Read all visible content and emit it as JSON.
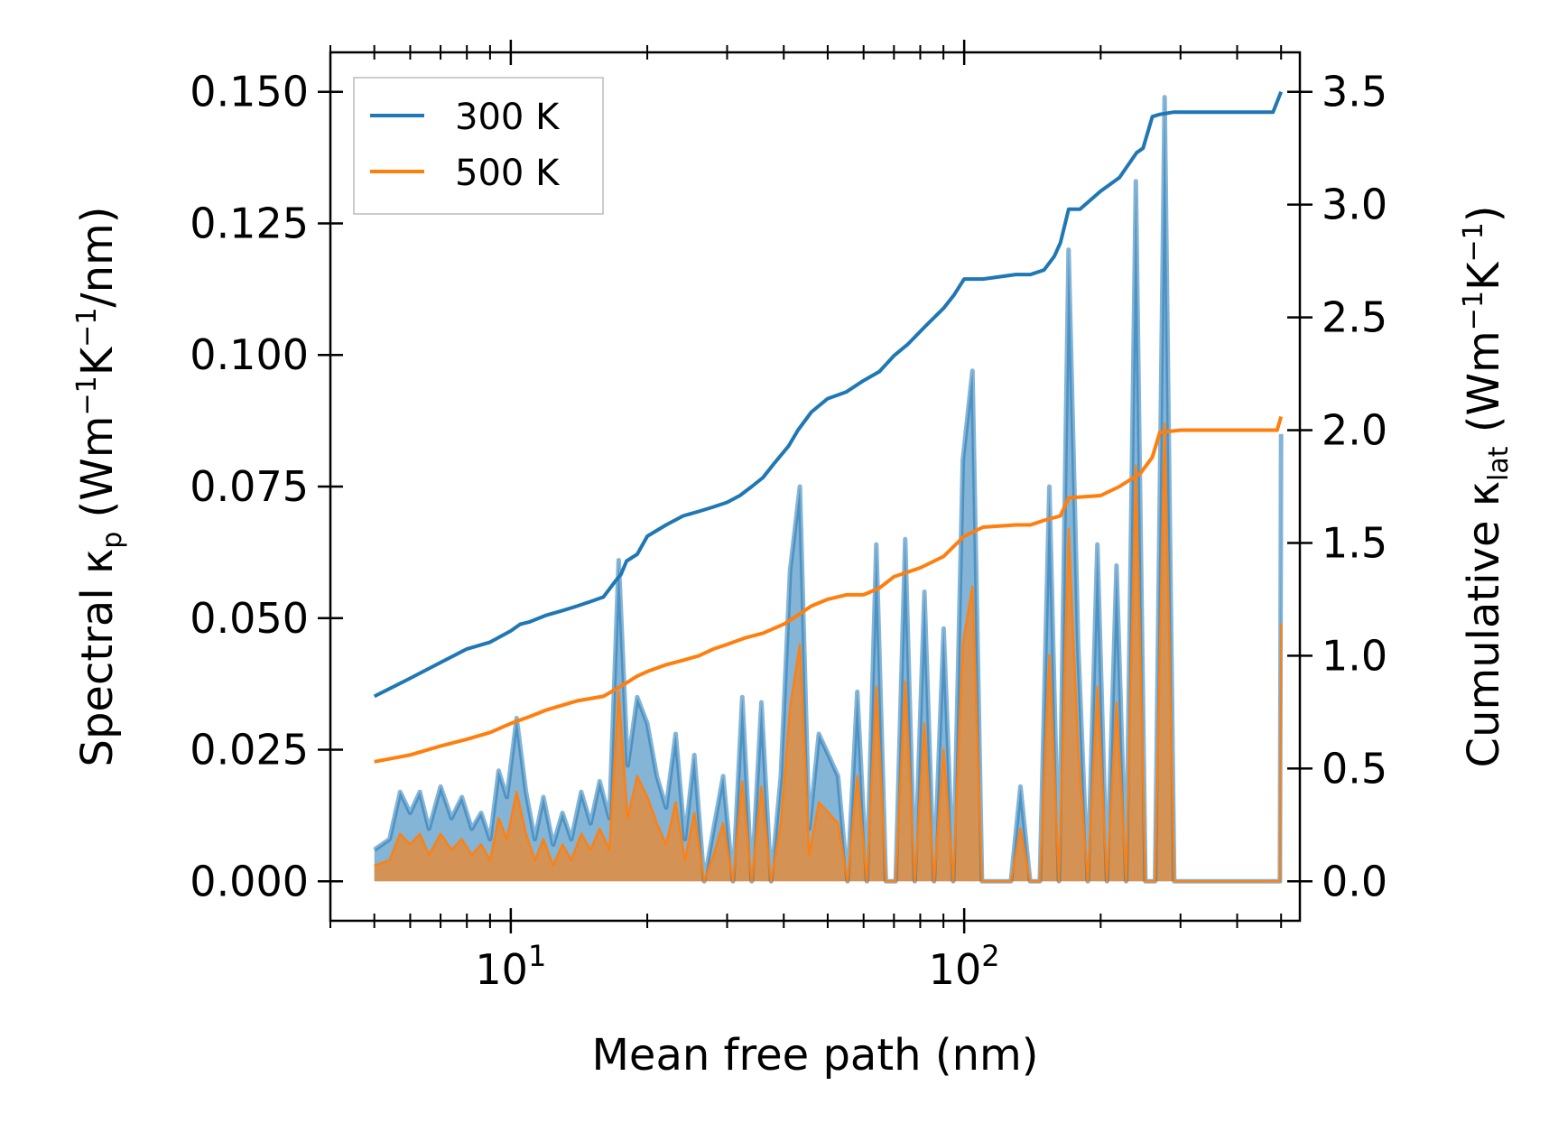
{
  "chart_data": {
    "type": "line",
    "xscale": "log",
    "xlim": [
      4.0,
      550
    ],
    "xlabel": "Mean free path (nm)",
    "x_tick_labels": [
      {
        "value": 10,
        "base": "10",
        "exp": "1"
      },
      {
        "value": 100,
        "base": "10",
        "exp": "2"
      }
    ],
    "left_axis": {
      "label_parts": [
        "Spectral κ",
        "p",
        " (Wm",
        "−1",
        "K",
        "−1",
        "/nm)"
      ],
      "ylim": [
        -0.0075,
        0.1575
      ],
      "ticks": [
        0.0,
        0.025,
        0.05,
        0.075,
        0.1,
        0.125,
        0.15
      ],
      "tick_labels": [
        "0.000",
        "0.025",
        "0.050",
        "0.075",
        "0.100",
        "0.125",
        "0.150"
      ]
    },
    "right_axis": {
      "label_parts": [
        "Cumulative κ",
        "lat",
        " (Wm",
        "−1",
        "K",
        "−1",
        ")"
      ],
      "ylim": [
        -0.175,
        3.675
      ],
      "ticks": [
        0.0,
        0.5,
        1.0,
        1.5,
        2.0,
        2.5,
        3.0,
        3.5
      ],
      "tick_labels": [
        "0.0",
        "0.5",
        "1.0",
        "1.5",
        "2.0",
        "2.5",
        "3.0",
        "3.5"
      ]
    },
    "legend": {
      "location": "top-left",
      "entries": [
        "300 K",
        "500 K"
      ]
    },
    "spectral_x": [
      5.0,
      5.4,
      5.7,
      6.0,
      6.3,
      6.6,
      7.0,
      7.4,
      7.8,
      8.2,
      8.6,
      9.0,
      9.4,
      9.8,
      10.3,
      10.8,
      11.3,
      11.8,
      12.4,
      13.0,
      13.6,
      14.3,
      15.0,
      15.7,
      16.5,
      17.3,
      18.1,
      19.0,
      20.0,
      21.0,
      22.0,
      23.1,
      24.2,
      25.4,
      26.7,
      28.0,
      29.4,
      30.9,
      32.4,
      34.0,
      35.7,
      37.5,
      39.4,
      41.3,
      43.4,
      45.5,
      47.8,
      50.2,
      52.7,
      55.3,
      58.1,
      61.0,
      64.0,
      67.2,
      70.6,
      74.1,
      77.8,
      81.7,
      85.8,
      90.1,
      94.6,
      99.3,
      104.3,
      109.5,
      115.0,
      120.7,
      126.8,
      133.1,
      139.8,
      146.8,
      154.1,
      161.8,
      169.9,
      178.4,
      187.3,
      196.7,
      206.5,
      216.8,
      227.7,
      239.1,
      251.0,
      263.6,
      276.8,
      290.6,
      305.1,
      320.4,
      336.4,
      353.2,
      370.9,
      389.4,
      408.9,
      429.3,
      450.8,
      473.4,
      497.0,
      500.0
    ],
    "series": [
      {
        "name": "300 K",
        "color": "#1f77b4",
        "spectral_kp": [
          0.006,
          0.008,
          0.017,
          0.013,
          0.017,
          0.01,
          0.018,
          0.012,
          0.016,
          0.01,
          0.013,
          0.008,
          0.021,
          0.016,
          0.031,
          0.017,
          0.008,
          0.016,
          0.007,
          0.013,
          0.008,
          0.017,
          0.011,
          0.019,
          0.012,
          0.061,
          0.022,
          0.035,
          0.03,
          0.02,
          0.014,
          0.028,
          0.008,
          0.024,
          0.0,
          0.01,
          0.02,
          0.0,
          0.035,
          0.0,
          0.034,
          0.0,
          0.02,
          0.059,
          0.075,
          0.01,
          0.028,
          0.024,
          0.02,
          0.0,
          0.036,
          0.0,
          0.064,
          0.0,
          0.0,
          0.065,
          0.0,
          0.055,
          0.0,
          0.048,
          0.0,
          0.08,
          0.097,
          0.0,
          0.0,
          0.0,
          0.0,
          0.018,
          0.0,
          0.0,
          0.075,
          0.0,
          0.12,
          0.045,
          0.0,
          0.064,
          0.0,
          0.06,
          0.0,
          0.133,
          0.0,
          0.0,
          0.149,
          0.0,
          0.0,
          0.0,
          0.0,
          0.0,
          0.0,
          0.0,
          0.0,
          0.0,
          0.0,
          0.0,
          0.0,
          0.085
        ],
        "cumulative_x": [
          5.0,
          6.0,
          7.0,
          8.0,
          9.0,
          10.0,
          10.5,
          11.0,
          12.0,
          13.0,
          14.0,
          15.0,
          16.0,
          17.0,
          17.5,
          18.0,
          19.0,
          20.0,
          22.0,
          24.0,
          26.0,
          28.0,
          30.0,
          32.0,
          34.0,
          36.0,
          38.0,
          41.0,
          43.0,
          46.0,
          50.0,
          55.0,
          60.0,
          65.0,
          70.0,
          75.0,
          82.0,
          90.0,
          95.0,
          100.0,
          110.0,
          130.0,
          140.0,
          150.0,
          158.0,
          163.0,
          170.0,
          180.0,
          200.0,
          220.0,
          240.0,
          248.0,
          260.0,
          270.0,
          290.0,
          320.0,
          400.0,
          480.0,
          500.0
        ],
        "cumulative_klat": [
          0.82,
          0.9,
          0.97,
          1.03,
          1.06,
          1.11,
          1.14,
          1.15,
          1.18,
          1.2,
          1.22,
          1.24,
          1.26,
          1.33,
          1.36,
          1.42,
          1.45,
          1.53,
          1.58,
          1.62,
          1.64,
          1.66,
          1.68,
          1.71,
          1.75,
          1.79,
          1.85,
          1.93,
          2.0,
          2.08,
          2.14,
          2.17,
          2.22,
          2.26,
          2.33,
          2.38,
          2.46,
          2.54,
          2.6,
          2.67,
          2.67,
          2.69,
          2.69,
          2.71,
          2.77,
          2.83,
          2.98,
          2.98,
          3.06,
          3.12,
          3.23,
          3.25,
          3.39,
          3.4,
          3.41,
          3.41,
          3.41,
          3.41,
          3.5
        ]
      },
      {
        "name": "500 K",
        "color": "#ff7f0e",
        "spectral_kp": [
          0.003,
          0.004,
          0.009,
          0.007,
          0.009,
          0.005,
          0.009,
          0.006,
          0.008,
          0.005,
          0.007,
          0.004,
          0.012,
          0.008,
          0.017,
          0.009,
          0.004,
          0.008,
          0.003,
          0.007,
          0.004,
          0.009,
          0.006,
          0.01,
          0.006,
          0.036,
          0.012,
          0.02,
          0.016,
          0.011,
          0.007,
          0.015,
          0.004,
          0.013,
          0.0,
          0.005,
          0.011,
          0.0,
          0.019,
          0.0,
          0.018,
          0.0,
          0.011,
          0.033,
          0.045,
          0.005,
          0.015,
          0.013,
          0.011,
          0.0,
          0.02,
          0.0,
          0.037,
          0.0,
          0.0,
          0.038,
          0.0,
          0.03,
          0.0,
          0.025,
          0.0,
          0.045,
          0.056,
          0.0,
          0.0,
          0.0,
          0.0,
          0.01,
          0.0,
          0.0,
          0.043,
          0.0,
          0.067,
          0.025,
          0.0,
          0.037,
          0.0,
          0.034,
          0.0,
          0.079,
          0.0,
          0.0,
          0.087,
          0.0,
          0.0,
          0.0,
          0.0,
          0.0,
          0.0,
          0.0,
          0.0,
          0.0,
          0.0,
          0.0,
          0.0,
          0.049
        ],
        "cumulative_x": [
          5.0,
          6.0,
          7.0,
          8.0,
          9.0,
          10.0,
          11.0,
          12.0,
          14.0,
          16.0,
          17.0,
          18.0,
          19.0,
          20.0,
          22.0,
          24.0,
          26.0,
          28.0,
          30.0,
          33.0,
          36.0,
          40.0,
          43.0,
          46.0,
          50.0,
          55.0,
          60.0,
          65.0,
          70.0,
          80.0,
          90.0,
          100.0,
          110.0,
          130.0,
          140.0,
          150.0,
          163.0,
          170.0,
          200.0,
          220.0,
          245.0,
          260.0,
          270.0,
          300.0,
          400.0,
          490.0,
          500.0
        ],
        "cumulative_klat": [
          0.53,
          0.56,
          0.6,
          0.63,
          0.66,
          0.7,
          0.73,
          0.76,
          0.8,
          0.82,
          0.85,
          0.88,
          0.91,
          0.93,
          0.96,
          0.98,
          1.0,
          1.03,
          1.05,
          1.08,
          1.1,
          1.14,
          1.18,
          1.22,
          1.25,
          1.27,
          1.27,
          1.3,
          1.35,
          1.39,
          1.44,
          1.53,
          1.57,
          1.58,
          1.58,
          1.6,
          1.62,
          1.7,
          1.71,
          1.75,
          1.81,
          1.88,
          1.99,
          2.0,
          2.0,
          2.0,
          2.06
        ]
      }
    ]
  }
}
